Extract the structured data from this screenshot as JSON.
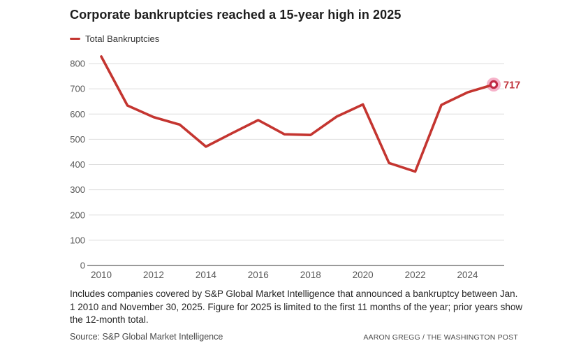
{
  "page": {
    "title": "Corporate bankruptcies reached a 15-year high in 2025",
    "footnote": "Includes companies covered by S&P Global Market Intelligence that announced a bankruptcy between Jan. 1 2010 and November 30, 2025. Figure for 2025 is limited to the first 11 months of the year; prior years show the 12-month total.",
    "source": "Source: S&P Global Market Intelligence",
    "credit": "AARON GREGG / THE WASHINGTON POST"
  },
  "legend": {
    "label": "Total Bankruptcies",
    "swatch_color": "#c43530"
  },
  "chart_data": {
    "type": "line",
    "title": "Corporate bankruptcies reached a 15-year high in 2025",
    "x": [
      2010,
      2011,
      2012,
      2013,
      2014,
      2015,
      2016,
      2017,
      2018,
      2019,
      2020,
      2021,
      2022,
      2023,
      2024,
      2025
    ],
    "series": [
      {
        "name": "Total Bankruptcies",
        "color": "#c43530",
        "values": [
          828,
          634,
          588,
          558,
          471,
          524,
          576,
          520,
          517,
          590,
          638,
          406,
          372,
          636,
          686,
          717
        ]
      }
    ],
    "x_tick_labels": [
      "2010",
      "2012",
      "2014",
      "2016",
      "2018",
      "2020",
      "2022",
      "2024"
    ],
    "y_ticks": [
      0,
      100,
      200,
      300,
      400,
      500,
      600,
      700,
      800
    ],
    "ylim": [
      0,
      850
    ],
    "grid": true,
    "legend_position": "top-left",
    "end_point": {
      "label": "717",
      "halo_color": "#f4a6c1",
      "ring_color": "#c02a45",
      "label_color": "#c0343c"
    }
  },
  "colors": {
    "grid_line": "#dedede",
    "axis_line": "#9a9a9a",
    "tick_text": "#585858",
    "background": "#ffffff"
  }
}
